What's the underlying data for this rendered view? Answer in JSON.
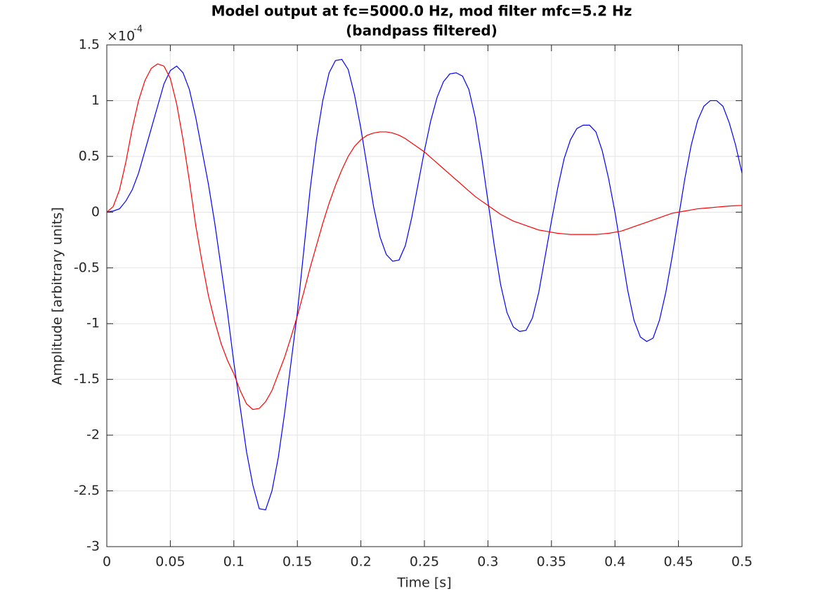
{
  "chart_data": {
    "type": "line",
    "title": [
      "Model output at fc=5000.0 Hz, mod filter mfc=5.2 Hz",
      "(bandpass filtered)"
    ],
    "x_label": "Time [s]",
    "y_label": "Amplitude [arbitrary units]",
    "y_multiplier_label": "×10",
    "y_exponent": -4,
    "xlim": [
      0,
      0.5
    ],
    "ylim": [
      -3,
      1.5
    ],
    "xticks": [
      0,
      0.05,
      0.1,
      0.15,
      0.2,
      0.25,
      0.3,
      0.35,
      0.4,
      0.45,
      0.5
    ],
    "yticks": [
      -3,
      -2.5,
      -2,
      -1.5,
      -1,
      -0.5,
      0,
      0.5,
      1,
      1.5
    ],
    "grid": true,
    "x": [
      0,
      0.005,
      0.01,
      0.015,
      0.02,
      0.025,
      0.03,
      0.035,
      0.04,
      0.045,
      0.05,
      0.055,
      0.06,
      0.065,
      0.07,
      0.075,
      0.08,
      0.085,
      0.09,
      0.095,
      0.1,
      0.105,
      0.11,
      0.115,
      0.12,
      0.125,
      0.13,
      0.135,
      0.14,
      0.145,
      0.15,
      0.155,
      0.16,
      0.165,
      0.17,
      0.175,
      0.18,
      0.185,
      0.19,
      0.195,
      0.2,
      0.205,
      0.21,
      0.215,
      0.22,
      0.225,
      0.23,
      0.235,
      0.24,
      0.245,
      0.25,
      0.255,
      0.26,
      0.265,
      0.27,
      0.275,
      0.28,
      0.285,
      0.29,
      0.295,
      0.3,
      0.305,
      0.31,
      0.315,
      0.32,
      0.325,
      0.33,
      0.335,
      0.34,
      0.345,
      0.35,
      0.355,
      0.36,
      0.365,
      0.37,
      0.375,
      0.38,
      0.385,
      0.39,
      0.395,
      0.4,
      0.405,
      0.41,
      0.415,
      0.42,
      0.425,
      0.43,
      0.435,
      0.44,
      0.445,
      0.45,
      0.455,
      0.46,
      0.465,
      0.47,
      0.475,
      0.48,
      0.485,
      0.49,
      0.495,
      0.5
    ],
    "series": [
      {
        "color": "#0000ff",
        "values": [
          0,
          0.01,
          0.03,
          0.1,
          0.2,
          0.35,
          0.55,
          0.75,
          0.95,
          1.15,
          1.27,
          1.31,
          1.25,
          1.1,
          0.85,
          0.55,
          0.25,
          -0.1,
          -0.5,
          -0.9,
          -1.35,
          -1.75,
          -2.15,
          -2.45,
          -2.66,
          -2.67,
          -2.5,
          -2.2,
          -1.8,
          -1.35,
          -0.9,
          -0.35,
          0.2,
          0.65,
          1.0,
          1.25,
          1.36,
          1.37,
          1.28,
          1.05,
          0.75,
          0.4,
          0.05,
          -0.22,
          -0.38,
          -0.44,
          -0.43,
          -0.3,
          -0.05,
          0.25,
          0.55,
          0.82,
          1.03,
          1.17,
          1.24,
          1.25,
          1.22,
          1.1,
          0.85,
          0.5,
          0.1,
          -0.3,
          -0.65,
          -0.9,
          -1.03,
          -1.07,
          -1.06,
          -0.95,
          -0.72,
          -0.4,
          -0.08,
          0.22,
          0.48,
          0.65,
          0.75,
          0.78,
          0.78,
          0.72,
          0.55,
          0.3,
          0.0,
          -0.35,
          -0.7,
          -0.97,
          -1.12,
          -1.16,
          -1.13,
          -0.97,
          -0.72,
          -0.4,
          -0.05,
          0.3,
          0.6,
          0.82,
          0.95,
          1.0,
          1.0,
          0.95,
          0.8,
          0.6,
          0.35
        ]
      },
      {
        "color": "#ff0000",
        "values": [
          0,
          0.05,
          0.2,
          0.45,
          0.75,
          1.0,
          1.18,
          1.29,
          1.33,
          1.31,
          1.2,
          0.97,
          0.65,
          0.28,
          -0.12,
          -0.45,
          -0.75,
          -0.98,
          -1.18,
          -1.33,
          -1.45,
          -1.6,
          -1.72,
          -1.77,
          -1.76,
          -1.7,
          -1.6,
          -1.45,
          -1.3,
          -1.12,
          -0.93,
          -0.72,
          -0.5,
          -0.3,
          -0.1,
          0.08,
          0.24,
          0.38,
          0.5,
          0.59,
          0.65,
          0.69,
          0.71,
          0.72,
          0.72,
          0.71,
          0.69,
          0.66,
          0.62,
          0.58,
          0.54,
          0.49,
          0.44,
          0.39,
          0.34,
          0.29,
          0.24,
          0.19,
          0.14,
          0.1,
          0.06,
          0.02,
          -0.02,
          -0.05,
          -0.08,
          -0.1,
          -0.12,
          -0.14,
          -0.16,
          -0.17,
          -0.18,
          -0.19,
          -0.195,
          -0.2,
          -0.2,
          -0.2,
          -0.2,
          -0.2,
          -0.195,
          -0.19,
          -0.18,
          -0.17,
          -0.15,
          -0.13,
          -0.11,
          -0.09,
          -0.07,
          -0.05,
          -0.03,
          -0.01,
          0.0,
          0.01,
          0.02,
          0.03,
          0.035,
          0.04,
          0.045,
          0.05,
          0.055,
          0.058,
          0.06
        ]
      }
    ]
  }
}
